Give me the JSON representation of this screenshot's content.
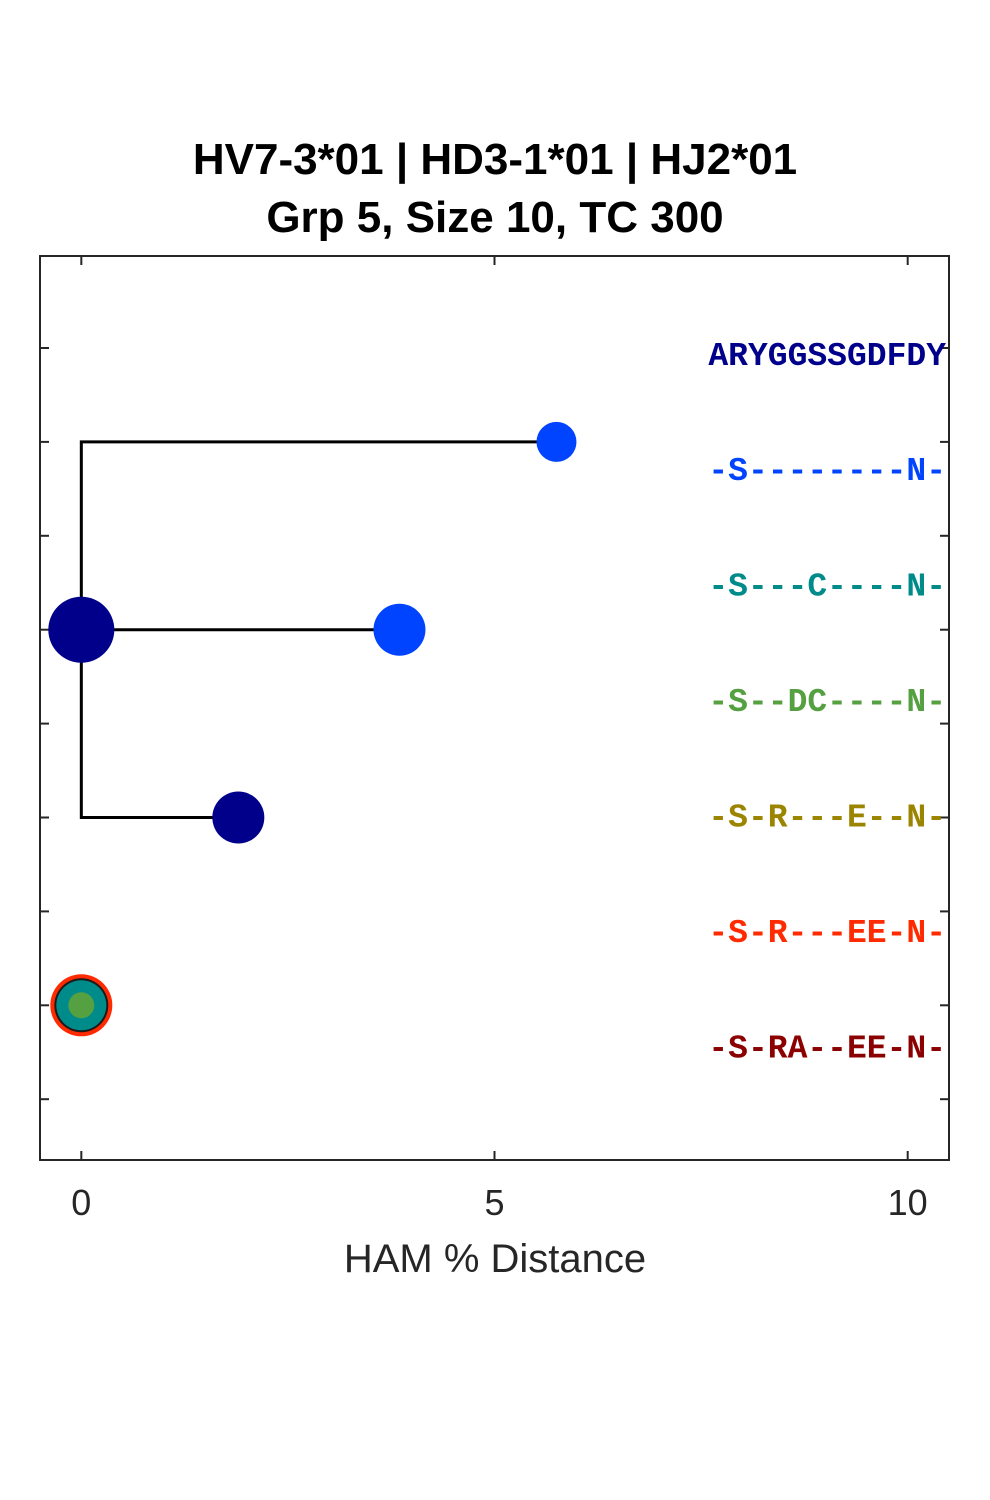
{
  "chart_data": {
    "type": "scatter",
    "title_lines": [
      "HV7-3*01 | HD3-1*01 | HJ2*01",
      "Grp 5, Size 10, TC 300"
    ],
    "xlabel": "HAM % Distance",
    "ylabel": "",
    "xlim": [
      -0.5,
      10.5
    ],
    "xticks": [
      0,
      5,
      10
    ],
    "xtick_labels": [
      "0",
      "5",
      "10"
    ],
    "grid": false,
    "reference_sequence": {
      "text": "ARYGGSSGDFDY",
      "color": "#00008B"
    },
    "sequences": [
      {
        "text": "-S--------N-",
        "color": "#0044FF"
      },
      {
        "text": "-S---C----N-",
        "color": "#008B8B"
      },
      {
        "text": "-S--DC----N-",
        "color": "#55A040"
      },
      {
        "text": "-S-R---E--N-",
        "color": "#9B8500"
      },
      {
        "text": "-S-R---EE-N-",
        "color": "#FF2A00"
      },
      {
        "text": "-S-RA--EE-N-",
        "color": "#8B0000"
      }
    ],
    "tree_edges": [
      {
        "from": "root",
        "to": "leaf_top"
      },
      {
        "from": "root",
        "to": "leaf_mid"
      },
      {
        "from": "root",
        "to": "leaf_low"
      }
    ],
    "nodes": [
      {
        "id": "root",
        "x": 0,
        "row": 4,
        "size": "large",
        "color": "#00008B"
      },
      {
        "id": "leaf_top",
        "x": 5.75,
        "row": 2,
        "size": "small",
        "color": "#0044FF"
      },
      {
        "id": "leaf_mid",
        "x": 3.85,
        "row": 4,
        "size": "medium",
        "color": "#0044FF"
      },
      {
        "id": "leaf_low",
        "x": 1.9,
        "row": 6,
        "size": "medium",
        "color": "#00008B"
      },
      {
        "id": "orphan",
        "x": 0,
        "row": 8,
        "size": "medium",
        "color": "#008B8B",
        "outline": "#FF2A00",
        "inner": "#55A040"
      }
    ]
  }
}
